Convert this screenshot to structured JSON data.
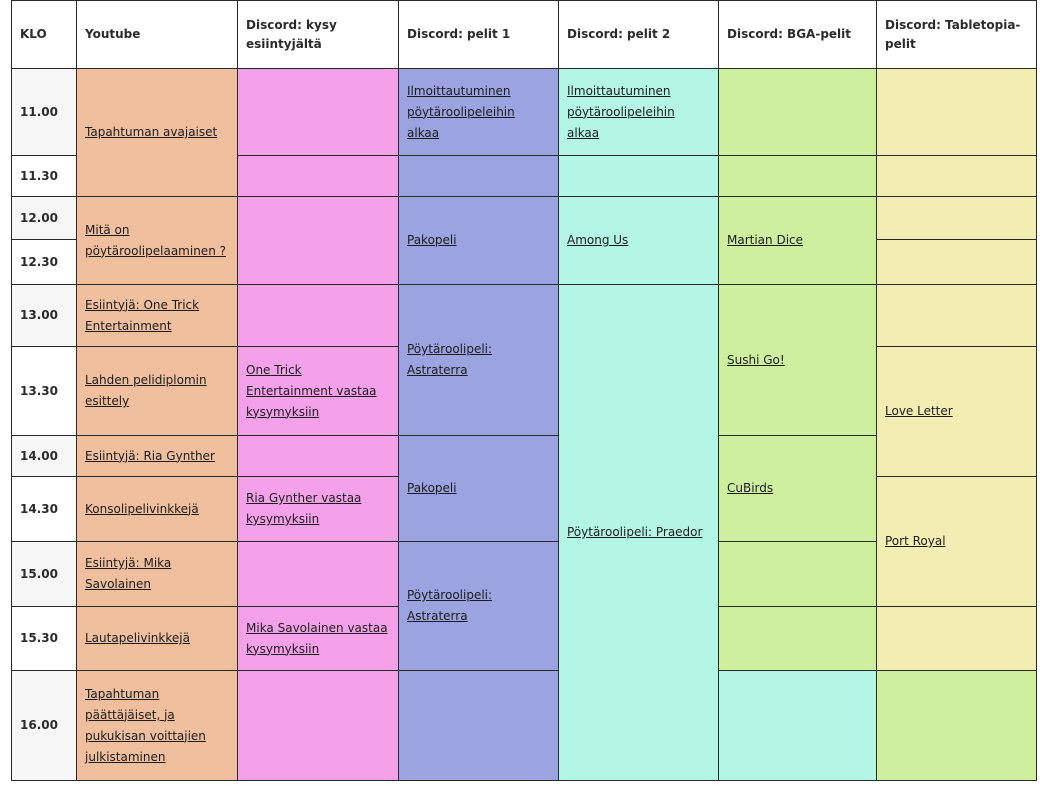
{
  "headers": {
    "klo": "KLO",
    "youtube": "Youtube",
    "kysy": "Discord: kysy esiintyjältä",
    "pelit1": "Discord: pelit 1",
    "pelit2": "Discord: pelit 2",
    "bga": "Discord: BGA-pelit",
    "tabletopia": "Discord: Tabletopia-pelit"
  },
  "times": [
    "11.00",
    "11.30",
    "12.00",
    "12.30",
    "13.00",
    "13.30",
    "14.00",
    "14.30",
    "15.00",
    "15.30",
    "16.00"
  ],
  "youtube": {
    "avajaiset": "Tapahtuman avajaiset",
    "mita_on": "Mitä on pöytäroolipelaaminen ?",
    "one_trick": "Esiintyjä: One Trick Entertainment",
    "lahden": "Lahden pelidiplomin esittely",
    "ria": "Esiintyjä: Ria Gynther",
    "konsoli": "Konsolipelivinkkejä",
    "mika": "Esiintyjä: Mika Savolainen",
    "lautapeli": "Lautapelivinkkejä",
    "paattajaiset": "Tapahtuman päättäjäiset, ja pukukisan voittajien julkistaminen"
  },
  "kysy": {
    "one_trick": "One Trick Entertainment vastaa kysymyksiin",
    "ria": "Ria Gynther vastaa kysymyksiin",
    "mika": "Mika Savolainen vastaa kysymyksiin"
  },
  "pelit1": {
    "ilmoittautuminen": "Ilmoittautuminen pöytäroolipeleihin alkaa",
    "pakopeli_a": "Pakopeli",
    "astraterra_a": "Pöytäroolipeli: Astraterra",
    "pakopeli_b": "Pakopeli",
    "astraterra_b": "Pöytäroolipeli: Astraterra"
  },
  "pelit2": {
    "ilmoittautuminen": "Ilmoittautuminen pöytäroolipeleihin alkaa",
    "among_us": "Among Us",
    "praedor": "Pöytäroolipeli: Praedor"
  },
  "bga": {
    "martian_dice": "Martian Dice",
    "sushi_go": "Sushi Go!",
    "cubirds": "CuBirds"
  },
  "tabletopia": {
    "love_letter": "Love Letter",
    "port_royal": "Port Royal"
  },
  "colors": {
    "youtube": "#f0bf9e",
    "kysy": "#f4a1ea",
    "pelit1": "#9ba3e1",
    "pelit2": "#b3f6e6",
    "bga": "#cdef9e",
    "tabletopia": "#f1edb3"
  }
}
